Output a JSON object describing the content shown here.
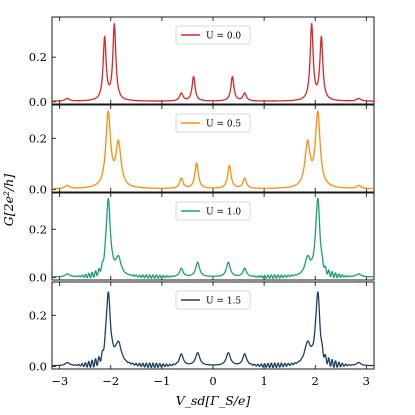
{
  "chart_data": {
    "type": "line",
    "xlabel": "V_sd[Γ_S/e]",
    "ylabel": "G[2e²/h]",
    "xlim": [
      -3.15,
      3.15
    ],
    "x_ticks": [
      -3,
      -2,
      -1,
      0,
      1,
      2,
      3
    ],
    "x_tick_labels": [
      "−3",
      "−2",
      "−1",
      "0",
      "1",
      "2",
      "3"
    ],
    "legend_placement": "top-center",
    "grid": false,
    "panels": [
      {
        "legend": "U = 0.0",
        "color": "#d62728",
        "ylim": [
          -0.01,
          0.38
        ],
        "y_ticks": [
          0.0,
          0.2
        ],
        "y_tick_labels": [
          "0.0",
          "0.2"
        ],
        "peaks": [
          {
            "x": -2.85,
            "h": 0.012,
            "w": 0.05
          },
          {
            "x": -2.12,
            "h": 0.28,
            "w": 0.035
          },
          {
            "x": -1.93,
            "h": 0.34,
            "w": 0.035
          },
          {
            "x": -0.62,
            "h": 0.035,
            "w": 0.04
          },
          {
            "x": -0.38,
            "h": 0.11,
            "w": 0.035
          },
          {
            "x": 0.38,
            "h": 0.11,
            "w": 0.035
          },
          {
            "x": 0.62,
            "h": 0.035,
            "w": 0.04
          },
          {
            "x": 1.93,
            "h": 0.34,
            "w": 0.035
          },
          {
            "x": 2.12,
            "h": 0.28,
            "w": 0.035
          },
          {
            "x": 2.85,
            "h": 0.012,
            "w": 0.05
          }
        ],
        "baseline": 0.002
      },
      {
        "legend": "U = 0.5",
        "color": "#ff8c0a",
        "ylim": [
          -0.01,
          0.33
        ],
        "y_ticks": [
          0.0,
          0.2
        ],
        "y_tick_labels": [
          "0.0",
          "0.2"
        ],
        "peaks": [
          {
            "x": -2.85,
            "h": 0.012,
            "w": 0.05
          },
          {
            "x": -2.05,
            "h": 0.29,
            "w": 0.055
          },
          {
            "x": -1.85,
            "h": 0.17,
            "w": 0.06
          },
          {
            "x": -0.62,
            "h": 0.04,
            "w": 0.04
          },
          {
            "x": -0.32,
            "h": 0.1,
            "w": 0.04
          },
          {
            "x": 0.32,
            "h": 0.09,
            "w": 0.04
          },
          {
            "x": 0.62,
            "h": 0.04,
            "w": 0.04
          },
          {
            "x": 1.85,
            "h": 0.17,
            "w": 0.06
          },
          {
            "x": 2.05,
            "h": 0.29,
            "w": 0.055
          },
          {
            "x": 2.85,
            "h": 0.012,
            "w": 0.05
          }
        ],
        "baseline": 0.002
      },
      {
        "legend": "U = 1.0",
        "color": "#1b9e77",
        "ylim": [
          -0.01,
          0.35
        ],
        "y_ticks": [
          0.0,
          0.2
        ],
        "y_tick_labels": [
          "0.0",
          "0.2"
        ],
        "peaks": [
          {
            "x": -2.85,
            "h": 0.012,
            "w": 0.05
          },
          {
            "x": -2.05,
            "h": 0.32,
            "w": 0.05
          },
          {
            "x": -1.85,
            "h": 0.07,
            "w": 0.06
          },
          {
            "x": -0.62,
            "h": 0.035,
            "w": 0.04
          },
          {
            "x": -0.3,
            "h": 0.06,
            "w": 0.045
          },
          {
            "x": 0.3,
            "h": 0.06,
            "w": 0.045
          },
          {
            "x": 0.62,
            "h": 0.035,
            "w": 0.04
          },
          {
            "x": 1.85,
            "h": 0.07,
            "w": 0.06
          },
          {
            "x": 2.05,
            "h": 0.32,
            "w": 0.05
          },
          {
            "x": 2.85,
            "h": 0.012,
            "w": 0.05
          }
        ],
        "baseline": 0.002,
        "ripple": 0.012
      },
      {
        "legend": "U = 1.5",
        "color": "#1c3f60",
        "ylim": [
          -0.01,
          0.33
        ],
        "y_ticks": [
          0.0,
          0.2
        ],
        "y_tick_labels": [
          "0.0",
          "0.2"
        ],
        "peaks": [
          {
            "x": -2.85,
            "h": 0.012,
            "w": 0.05
          },
          {
            "x": -2.05,
            "h": 0.28,
            "w": 0.05
          },
          {
            "x": -1.85,
            "h": 0.08,
            "w": 0.07
          },
          {
            "x": -0.62,
            "h": 0.045,
            "w": 0.045
          },
          {
            "x": -0.3,
            "h": 0.05,
            "w": 0.05
          },
          {
            "x": 0.3,
            "h": 0.05,
            "w": 0.05
          },
          {
            "x": 0.62,
            "h": 0.045,
            "w": 0.045
          },
          {
            "x": 1.85,
            "h": 0.08,
            "w": 0.07
          },
          {
            "x": 2.05,
            "h": 0.28,
            "w": 0.05
          },
          {
            "x": 2.85,
            "h": 0.012,
            "w": 0.05
          }
        ],
        "baseline": 0.002,
        "ripple": 0.015
      }
    ]
  }
}
